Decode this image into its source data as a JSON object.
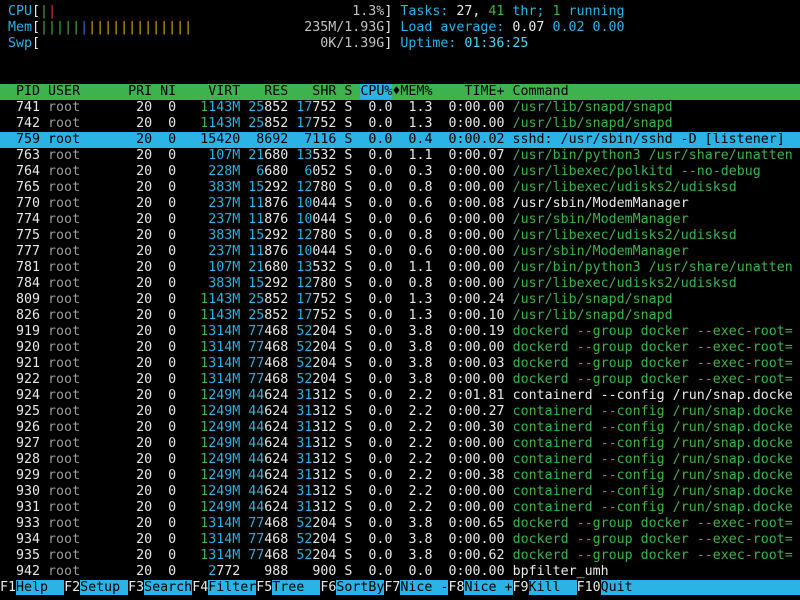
{
  "palette": {
    "background": "#000000",
    "cyan": "#2bb3e6",
    "green": "#3db24d",
    "red": "#d23b2a",
    "blue": "#2c72d8",
    "yellow": "#d9a50a",
    "white": "#e8e8e8",
    "gray": "#9a9a9a",
    "header_bg": "#3db24d",
    "selected_bg": "#2bb3e6"
  },
  "meters": {
    "bar_glyph": "|",
    "bracket_open": "[",
    "bracket_close": "]",
    "cpu": {
      "label": "CPU",
      "text": "1.3%",
      "bars": [
        {
          "color": "green",
          "count": 1
        },
        {
          "color": "red",
          "count": 1
        }
      ]
    },
    "mem": {
      "label": "Mem",
      "text": "235M/1.93G",
      "bars": [
        {
          "color": "green",
          "count": 5
        },
        {
          "color": "blue",
          "count": 1
        },
        {
          "color": "yellow",
          "count": 13
        }
      ]
    },
    "swp": {
      "label": "Swp",
      "text": "0K/1.39G",
      "bars": []
    }
  },
  "summary": {
    "tasks_segments": [
      [
        "Tasks: ",
        "cyan"
      ],
      [
        "27",
        "white"
      ],
      [
        ", ",
        "white"
      ],
      [
        "41",
        "green"
      ],
      [
        " thr; ",
        "cyan"
      ],
      [
        "1",
        "green"
      ],
      [
        " running",
        "cyan"
      ]
    ],
    "load_segments": [
      [
        "Load average: ",
        "cyan"
      ],
      [
        "0.07 ",
        "white"
      ],
      [
        "0.02 ",
        "cyan"
      ],
      [
        "0.00",
        "cyan"
      ]
    ],
    "uptime_segments": [
      [
        "Uptime: ",
        "cyan"
      ],
      [
        "01:36:25",
        "bcyan"
      ]
    ]
  },
  "table": {
    "header_labels": {
      "pid": "PID",
      "user": "USER",
      "pri": "PRI",
      "ni": "NI",
      "virt": "VIRT",
      "res": "RES",
      "shr": "SHR",
      "s": "S",
      "cpu": "CPU%",
      "mem": "MEM%",
      "time": "TIME+",
      "cmd": "Command"
    },
    "sort_column": "cpu",
    "sort_indicator": "♦",
    "rows": [
      {
        "pid": "741",
        "user": "root",
        "pri": "20",
        "ni": "0",
        "virt": "1143M",
        "res": "25852",
        "shr": "17752",
        "s": "S",
        "cpu": "0.0",
        "mem": "1.3",
        "time": "0:00.00",
        "cmd": "/usr/lib/snapd/snapd",
        "cmd_color": "green",
        "selected": false
      },
      {
        "pid": "742",
        "user": "root",
        "pri": "20",
        "ni": "0",
        "virt": "1143M",
        "res": "25852",
        "shr": "17752",
        "s": "S",
        "cpu": "0.0",
        "mem": "1.3",
        "time": "0:00.00",
        "cmd": "/usr/lib/snapd/snapd",
        "cmd_color": "green",
        "selected": false
      },
      {
        "pid": "759",
        "user": "root",
        "pri": "20",
        "ni": "0",
        "virt": "15420",
        "res": "8692",
        "shr": "7116",
        "s": "S",
        "cpu": "0.0",
        "mem": "0.4",
        "time": "0:00.02",
        "cmd": "sshd: /usr/sbin/sshd -D [listener]",
        "cmd_color": "white",
        "selected": true
      },
      {
        "pid": "763",
        "user": "root",
        "pri": "20",
        "ni": "0",
        "virt": "107M",
        "res": "21680",
        "shr": "13532",
        "s": "S",
        "cpu": "0.0",
        "mem": "1.1",
        "time": "0:00.07",
        "cmd": "/usr/bin/python3 /usr/share/unatten",
        "cmd_color": "green",
        "selected": false
      },
      {
        "pid": "764",
        "user": "root",
        "pri": "20",
        "ni": "0",
        "virt": "228M",
        "res": "6680",
        "shr": "6052",
        "s": "S",
        "cpu": "0.0",
        "mem": "0.3",
        "time": "0:00.00",
        "cmd": "/usr/libexec/polkitd --no-debug",
        "cmd_color": "green",
        "selected": false
      },
      {
        "pid": "765",
        "user": "root",
        "pri": "20",
        "ni": "0",
        "virt": "383M",
        "res": "15292",
        "shr": "12780",
        "s": "S",
        "cpu": "0.0",
        "mem": "0.8",
        "time": "0:00.00",
        "cmd": "/usr/libexec/udisks2/udisksd",
        "cmd_color": "green",
        "selected": false
      },
      {
        "pid": "770",
        "user": "root",
        "pri": "20",
        "ni": "0",
        "virt": "237M",
        "res": "11876",
        "shr": "10044",
        "s": "S",
        "cpu": "0.0",
        "mem": "0.6",
        "time": "0:00.08",
        "cmd": "/usr/sbin/ModemManager",
        "cmd_color": "white",
        "selected": false
      },
      {
        "pid": "774",
        "user": "root",
        "pri": "20",
        "ni": "0",
        "virt": "237M",
        "res": "11876",
        "shr": "10044",
        "s": "S",
        "cpu": "0.0",
        "mem": "0.6",
        "time": "0:00.00",
        "cmd": "/usr/sbin/ModemManager",
        "cmd_color": "green",
        "selected": false
      },
      {
        "pid": "775",
        "user": "root",
        "pri": "20",
        "ni": "0",
        "virt": "383M",
        "res": "15292",
        "shr": "12780",
        "s": "S",
        "cpu": "0.0",
        "mem": "0.8",
        "time": "0:00.00",
        "cmd": "/usr/libexec/udisks2/udisksd",
        "cmd_color": "green",
        "selected": false
      },
      {
        "pid": "777",
        "user": "root",
        "pri": "20",
        "ni": "0",
        "virt": "237M",
        "res": "11876",
        "shr": "10044",
        "s": "S",
        "cpu": "0.0",
        "mem": "0.6",
        "time": "0:00.00",
        "cmd": "/usr/sbin/ModemManager",
        "cmd_color": "green",
        "selected": false
      },
      {
        "pid": "781",
        "user": "root",
        "pri": "20",
        "ni": "0",
        "virt": "107M",
        "res": "21680",
        "shr": "13532",
        "s": "S",
        "cpu": "0.0",
        "mem": "1.1",
        "time": "0:00.00",
        "cmd": "/usr/bin/python3 /usr/share/unatten",
        "cmd_color": "green",
        "selected": false
      },
      {
        "pid": "784",
        "user": "root",
        "pri": "20",
        "ni": "0",
        "virt": "383M",
        "res": "15292",
        "shr": "12780",
        "s": "S",
        "cpu": "0.0",
        "mem": "0.8",
        "time": "0:00.00",
        "cmd": "/usr/libexec/udisks2/udisksd",
        "cmd_color": "green",
        "selected": false
      },
      {
        "pid": "809",
        "user": "root",
        "pri": "20",
        "ni": "0",
        "virt": "1143M",
        "res": "25852",
        "shr": "17752",
        "s": "S",
        "cpu": "0.0",
        "mem": "1.3",
        "time": "0:00.24",
        "cmd": "/usr/lib/snapd/snapd",
        "cmd_color": "green",
        "selected": false
      },
      {
        "pid": "826",
        "user": "root",
        "pri": "20",
        "ni": "0",
        "virt": "1143M",
        "res": "25852",
        "shr": "17752",
        "s": "S",
        "cpu": "0.0",
        "mem": "1.3",
        "time": "0:00.10",
        "cmd": "/usr/lib/snapd/snapd",
        "cmd_color": "green",
        "selected": false
      },
      {
        "pid": "919",
        "user": "root",
        "pri": "20",
        "ni": "0",
        "virt": "1314M",
        "res": "77468",
        "shr": "52204",
        "s": "S",
        "cpu": "0.0",
        "mem": "3.8",
        "time": "0:00.19",
        "cmd": "dockerd --group docker --exec-root=",
        "cmd_color": "green",
        "selected": false
      },
      {
        "pid": "920",
        "user": "root",
        "pri": "20",
        "ni": "0",
        "virt": "1314M",
        "res": "77468",
        "shr": "52204",
        "s": "S",
        "cpu": "0.0",
        "mem": "3.8",
        "time": "0:00.00",
        "cmd": "dockerd --group docker --exec-root=",
        "cmd_color": "green",
        "selected": false
      },
      {
        "pid": "921",
        "user": "root",
        "pri": "20",
        "ni": "0",
        "virt": "1314M",
        "res": "77468",
        "shr": "52204",
        "s": "S",
        "cpu": "0.0",
        "mem": "3.8",
        "time": "0:00.03",
        "cmd": "dockerd --group docker --exec-root=",
        "cmd_color": "green",
        "selected": false
      },
      {
        "pid": "922",
        "user": "root",
        "pri": "20",
        "ni": "0",
        "virt": "1314M",
        "res": "77468",
        "shr": "52204",
        "s": "S",
        "cpu": "0.0",
        "mem": "3.8",
        "time": "0:00.00",
        "cmd": "dockerd --group docker --exec-root=",
        "cmd_color": "green",
        "selected": false
      },
      {
        "pid": "924",
        "user": "root",
        "pri": "20",
        "ni": "0",
        "virt": "1249M",
        "res": "44624",
        "shr": "31312",
        "s": "S",
        "cpu": "0.0",
        "mem": "2.2",
        "time": "0:01.81",
        "cmd": "containerd --config /run/snap.docke",
        "cmd_color": "white",
        "selected": false
      },
      {
        "pid": "925",
        "user": "root",
        "pri": "20",
        "ni": "0",
        "virt": "1249M",
        "res": "44624",
        "shr": "31312",
        "s": "S",
        "cpu": "0.0",
        "mem": "2.2",
        "time": "0:00.27",
        "cmd": "containerd --config /run/snap.docke",
        "cmd_color": "green",
        "selected": false
      },
      {
        "pid": "926",
        "user": "root",
        "pri": "20",
        "ni": "0",
        "virt": "1249M",
        "res": "44624",
        "shr": "31312",
        "s": "S",
        "cpu": "0.0",
        "mem": "2.2",
        "time": "0:00.30",
        "cmd": "containerd --config /run/snap.docke",
        "cmd_color": "green",
        "selected": false
      },
      {
        "pid": "927",
        "user": "root",
        "pri": "20",
        "ni": "0",
        "virt": "1249M",
        "res": "44624",
        "shr": "31312",
        "s": "S",
        "cpu": "0.0",
        "mem": "2.2",
        "time": "0:00.00",
        "cmd": "containerd --config /run/snap.docke",
        "cmd_color": "green",
        "selected": false
      },
      {
        "pid": "928",
        "user": "root",
        "pri": "20",
        "ni": "0",
        "virt": "1249M",
        "res": "44624",
        "shr": "31312",
        "s": "S",
        "cpu": "0.0",
        "mem": "2.2",
        "time": "0:00.00",
        "cmd": "containerd --config /run/snap.docke",
        "cmd_color": "green",
        "selected": false
      },
      {
        "pid": "929",
        "user": "root",
        "pri": "20",
        "ni": "0",
        "virt": "1249M",
        "res": "44624",
        "shr": "31312",
        "s": "S",
        "cpu": "0.0",
        "mem": "2.2",
        "time": "0:00.38",
        "cmd": "containerd --config /run/snap.docke",
        "cmd_color": "green",
        "selected": false
      },
      {
        "pid": "930",
        "user": "root",
        "pri": "20",
        "ni": "0",
        "virt": "1249M",
        "res": "44624",
        "shr": "31312",
        "s": "S",
        "cpu": "0.0",
        "mem": "2.2",
        "time": "0:00.00",
        "cmd": "containerd --config /run/snap.docke",
        "cmd_color": "green",
        "selected": false
      },
      {
        "pid": "931",
        "user": "root",
        "pri": "20",
        "ni": "0",
        "virt": "1249M",
        "res": "44624",
        "shr": "31312",
        "s": "S",
        "cpu": "0.0",
        "mem": "2.2",
        "time": "0:00.00",
        "cmd": "containerd --config /run/snap.docke",
        "cmd_color": "green",
        "selected": false
      },
      {
        "pid": "933",
        "user": "root",
        "pri": "20",
        "ni": "0",
        "virt": "1314M",
        "res": "77468",
        "shr": "52204",
        "s": "S",
        "cpu": "0.0",
        "mem": "3.8",
        "time": "0:00.65",
        "cmd": "dockerd --group docker --exec-root=",
        "cmd_color": "green",
        "selected": false
      },
      {
        "pid": "934",
        "user": "root",
        "pri": "20",
        "ni": "0",
        "virt": "1314M",
        "res": "77468",
        "shr": "52204",
        "s": "S",
        "cpu": "0.0",
        "mem": "3.8",
        "time": "0:00.00",
        "cmd": "dockerd --group docker --exec-root=",
        "cmd_color": "green",
        "selected": false
      },
      {
        "pid": "935",
        "user": "root",
        "pri": "20",
        "ni": "0",
        "virt": "1314M",
        "res": "77468",
        "shr": "52204",
        "s": "S",
        "cpu": "0.0",
        "mem": "3.8",
        "time": "0:00.62",
        "cmd": "dockerd --group docker --exec-root=",
        "cmd_color": "green",
        "selected": false
      },
      {
        "pid": "942",
        "user": "root",
        "pri": "20",
        "ni": "0",
        "virt": "2772",
        "res": "988",
        "shr": "900",
        "s": "S",
        "cpu": "0.0",
        "mem": "0.0",
        "time": "0:00.00",
        "cmd": "bpfilter_umh",
        "cmd_color": "white",
        "selected": false
      }
    ]
  },
  "fkeys": [
    {
      "key": "F1",
      "label": "Help"
    },
    {
      "key": "F2",
      "label": "Setup"
    },
    {
      "key": "F3",
      "label": "Search"
    },
    {
      "key": "F4",
      "label": "Filter"
    },
    {
      "key": "F5",
      "label": "Tree"
    },
    {
      "key": "F6",
      "label": "SortBy"
    },
    {
      "key": "F7",
      "label": "Nice -"
    },
    {
      "key": "F8",
      "label": "Nice +"
    },
    {
      "key": "F9",
      "label": "Kill"
    },
    {
      "key": "F10",
      "label": "Quit"
    }
  ]
}
